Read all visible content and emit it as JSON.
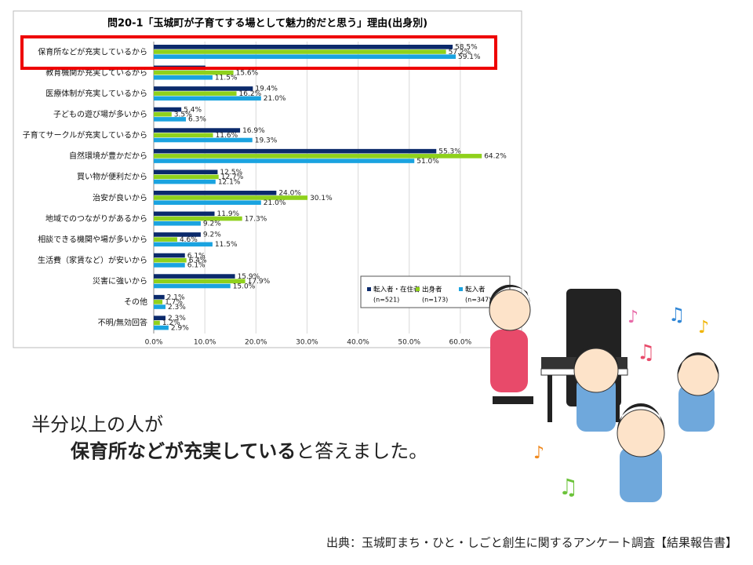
{
  "chart_data": {
    "type": "bar",
    "orientation": "horizontal",
    "title": "問20-1「玉城町が子育てする場として魅力的だと思う」理由(出身別)",
    "categories": [
      "保育所などが充実しているから",
      "教育機関が充実しているから",
      "医療体制が充実しているから",
      "子どもの遊び場が多いから",
      "子育てサークルが充実しているから",
      "自然環境が豊かだから",
      "買い物が便利だから",
      "治安が良いから",
      "地域でのつながりがあるから",
      "相談できる機関や場が多いから",
      "生活費（家賃など）が安いから",
      "災害に強いから",
      "その他",
      "不明/無効回答"
    ],
    "series": [
      {
        "name": "転入者・在住者",
        "n": "(n=521)",
        "color": "#0b2a6b",
        "values": [
          58.5,
          10.1,
          19.4,
          5.4,
          16.9,
          55.3,
          12.5,
          24.0,
          11.9,
          9.2,
          6.1,
          15.9,
          2.1,
          2.3
        ],
        "value_labels": [
          "58.5%",
          null,
          "19.4%",
          "5.4%",
          "16.9%",
          "55.3%",
          "12.5%",
          "24.0%",
          "11.9%",
          "9.2%",
          "6.1%",
          "15.9%",
          "2.1%",
          "2.3%"
        ]
      },
      {
        "name": "出身者",
        "n": "(n=173)",
        "color": "#8fd11c",
        "values": [
          57.2,
          15.6,
          16.2,
          3.5,
          11.6,
          64.2,
          12.7,
          30.1,
          17.3,
          4.6,
          6.4,
          17.9,
          1.7,
          1.2
        ],
        "value_labels": [
          "57.2%",
          "15.6%",
          "16.2%",
          "3.5%",
          "11.6%",
          "64.2%",
          "12.7%",
          "30.1%",
          "17.3%",
          "4.6%",
          "6.4%",
          "17.9%",
          "1.7%",
          "1.2%"
        ]
      },
      {
        "name": "転入者",
        "n": "(n=347)",
        "color": "#1aa3e0",
        "values": [
          59.1,
          11.5,
          21.0,
          6.3,
          19.3,
          51.0,
          12.1,
          21.0,
          9.2,
          11.5,
          6.1,
          15.0,
          2.3,
          2.9
        ],
        "value_labels": [
          "59.1%",
          "11.5%",
          "21.0%",
          "6.3%",
          "19.3%",
          "51.0%",
          "12.1%",
          "21.0%",
          "9.2%",
          "11.5%",
          "6.1%",
          "15.0%",
          "2.3%",
          "2.9%"
        ]
      }
    ],
    "xlim": [
      0,
      70
    ],
    "xticks": [
      {
        "value": 0,
        "label": "0.0%"
      },
      {
        "value": 10,
        "label": "10.0%"
      },
      {
        "value": 20,
        "label": "20.0%"
      },
      {
        "value": 30,
        "label": "30.0%"
      },
      {
        "value": 40,
        "label": "40.0%"
      },
      {
        "value": 50,
        "label": "50.0%"
      },
      {
        "value": 60,
        "label": "60.0%"
      }
    ],
    "grid": true,
    "legend": "lower right"
  },
  "slide": {
    "line1": "半分以上の人が",
    "emphasis": "保育所などが充実している",
    "line2_rest": "と答えました。",
    "source": "出典：玉城町まち・ひと・しごと創生に関するアンケート調査【結果報告書】"
  }
}
